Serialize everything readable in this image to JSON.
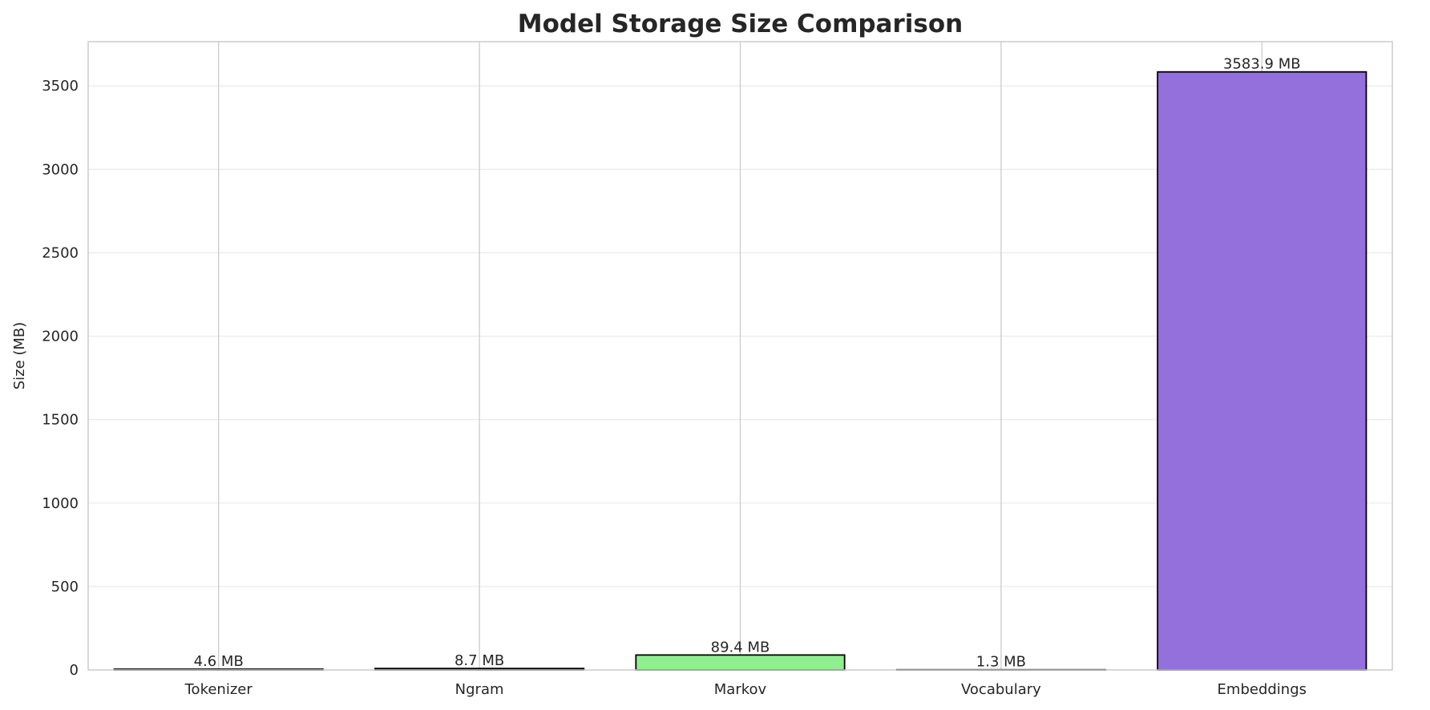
{
  "chart_data": {
    "type": "bar",
    "title": "Model Storage Size Comparison",
    "xlabel": "",
    "ylabel": "Size (MB)",
    "categories": [
      "Tokenizer",
      "Ngram",
      "Markov",
      "Vocabulary",
      "Embeddings"
    ],
    "values": [
      4.6,
      8.7,
      89.4,
      1.3,
      3583.9
    ],
    "data_labels": [
      "4.6 MB",
      "8.7 MB",
      "89.4 MB",
      "1.3 MB",
      "3583.9 MB"
    ],
    "colors": [
      "#87ceeb",
      "#f08080",
      "#90ee90",
      "#ffd700",
      "#9370db"
    ],
    "ylim": [
      0,
      3765
    ],
    "yticks": [
      0,
      500,
      1000,
      1500,
      2000,
      2500,
      3000,
      3500
    ],
    "grid": true
  }
}
